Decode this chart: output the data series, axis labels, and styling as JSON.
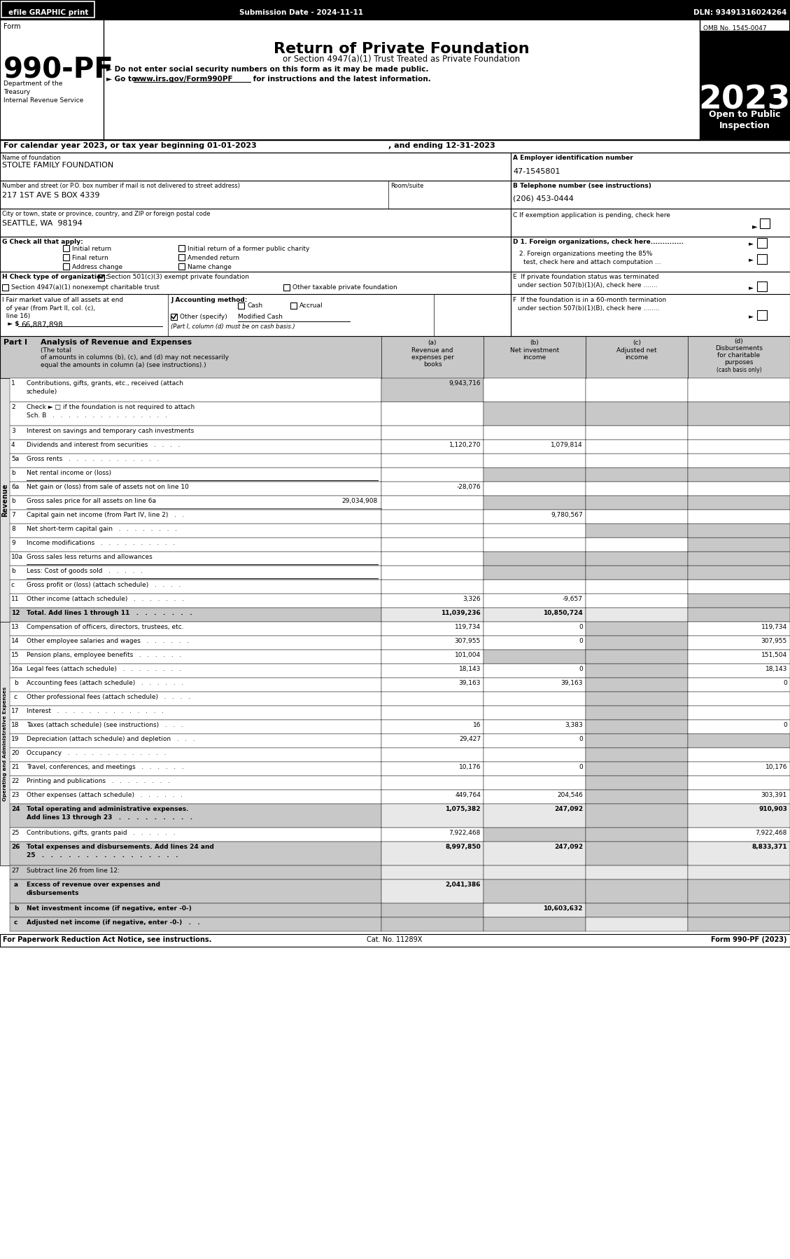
{
  "top_bar": {
    "text_left": "efile GRAPHIC print",
    "text_mid": "Submission Date - 2024-11-11",
    "text_right": "DLN: 93491316024264"
  },
  "form_number": "990-PF",
  "title": "Return of Private Foundation",
  "subtitle1": "or Section 4947(a)(1) Trust Treated as Private Foundation",
  "subtitle2": "► Do not enter social security numbers on this form as it may be made public.",
  "subtitle3_pre": "► Go to ",
  "subtitle3_url": "www.irs.gov/Form990PF",
  "subtitle3_post": " for instructions and the latest information.",
  "year": "2023",
  "omb": "OMB No. 1545-0047",
  "dept1": "Department of the",
  "dept2": "Treasury",
  "dept3": "Internal Revenue Service",
  "ein_label": "A Employer identification number",
  "ein_value": "47-1545801",
  "address_label": "Number and street (or P.O. box number if mail is not delivered to street address)",
  "room_label": "Room/suite",
  "address_value": "217 1ST AVE S BOX 4339",
  "phone_label": "B Telephone number (see instructions)",
  "phone_value": "(206) 453-0444",
  "city_value": "SEATTLE, WA  98194",
  "i_value": "66,887,898",
  "j_other_value": "Modified Cash",
  "rows": [
    {
      "num": "1",
      "label": "Contributions, gifts, grants, etc., received (attach\nschedule)",
      "a": "9,943,716",
      "b": "",
      "c": "",
      "d": "",
      "shade_cols": [
        true,
        false,
        false,
        false
      ]
    },
    {
      "num": "2",
      "label": "Check ► □ if the foundation is not required to attach\nSch. B   .   .   .   .   .   .   .   .   .   .   .   .   .   .   .",
      "a": "",
      "b": "",
      "c": "",
      "d": "",
      "shade_cols": [
        false,
        true,
        true,
        true
      ]
    },
    {
      "num": "3",
      "label": "Interest on savings and temporary cash investments",
      "a": "",
      "b": "",
      "c": "",
      "d": "",
      "shade_cols": [
        false,
        false,
        false,
        false
      ]
    },
    {
      "num": "4",
      "label": "Dividends and interest from securities   .   .   .   .",
      "a": "1,120,270",
      "b": "1,079,814",
      "c": "",
      "d": "",
      "shade_cols": [
        false,
        false,
        false,
        false
      ]
    },
    {
      "num": "5a",
      "label": "Gross rents   .   .   .   .   .   .   .   .   .   .   .   .",
      "a": "",
      "b": "",
      "c": "",
      "d": "",
      "shade_cols": [
        false,
        false,
        false,
        false
      ]
    },
    {
      "num": "b",
      "label": "Net rental income or (loss)",
      "a": "",
      "b": "",
      "c": "",
      "d": "",
      "shade_cols": [
        false,
        true,
        true,
        true
      ]
    },
    {
      "num": "6a",
      "label": "Net gain or (loss) from sale of assets not on line 10",
      "a": "-28,076",
      "b": "",
      "c": "",
      "d": "",
      "shade_cols": [
        false,
        false,
        false,
        false
      ]
    },
    {
      "num": "b",
      "label": "Gross sales price for all assets on line 6a",
      "a": "29,034,908",
      "b": "",
      "c": "",
      "d": "",
      "shade_cols": [
        false,
        true,
        true,
        true
      ],
      "value_in_label": true
    },
    {
      "num": "7",
      "label": "Capital gain net income (from Part IV, line 2)   .   .",
      "a": "",
      "b": "9,780,567",
      "c": "",
      "d": "",
      "shade_cols": [
        false,
        false,
        false,
        false
      ]
    },
    {
      "num": "8",
      "label": "Net short-term capital gain   .   .   .   .   .   .   .   .",
      "a": "",
      "b": "",
      "c": "",
      "d": "",
      "shade_cols": [
        false,
        false,
        true,
        true
      ]
    },
    {
      "num": "9",
      "label": "Income modifications   .   .   .   .   .   .   .   .   .   .",
      "a": "",
      "b": "",
      "c": "",
      "d": "",
      "shade_cols": [
        false,
        false,
        false,
        true
      ]
    },
    {
      "num": "10a",
      "label": "Gross sales less returns and allowances",
      "a": "",
      "b": "",
      "c": "",
      "d": "",
      "shade_cols": [
        false,
        true,
        true,
        true
      ],
      "underline_a": true
    },
    {
      "num": "b",
      "label": "Less: Cost of goods sold   .   .   .   .   .",
      "a": "",
      "b": "",
      "c": "",
      "d": "",
      "shade_cols": [
        false,
        true,
        true,
        true
      ],
      "underline_a": true
    },
    {
      "num": "c",
      "label": "Gross profit or (loss) (attach schedule)   .   .   .   .",
      "a": "",
      "b": "",
      "c": "",
      "d": "",
      "shade_cols": [
        false,
        false,
        false,
        false
      ]
    },
    {
      "num": "11",
      "label": "Other income (attach schedule)   .   .   .   .   .   .   .",
      "a": "3,326",
      "b": "-9,657",
      "c": "",
      "d": "",
      "shade_cols": [
        false,
        false,
        false,
        true
      ]
    },
    {
      "num": "12",
      "label": "Total. Add lines 1 through 11   .   .   .   .   .   .   .",
      "a": "11,039,236",
      "b": "10,850,724",
      "c": "",
      "d": "",
      "bold": true,
      "shade_cols": [
        false,
        false,
        false,
        true
      ]
    },
    {
      "num": "13",
      "label": "Compensation of officers, directors, trustees, etc.",
      "a": "119,734",
      "b": "0",
      "c": "",
      "d": "119,734",
      "shade_cols": [
        false,
        false,
        true,
        false
      ]
    },
    {
      "num": "14",
      "label": "Other employee salaries and wages   .   .   .   .   .   .",
      "a": "307,955",
      "b": "0",
      "c": "",
      "d": "307,955",
      "shade_cols": [
        false,
        false,
        true,
        false
      ]
    },
    {
      "num": "15",
      "label": "Pension plans, employee benefits   .   .   .   .   .   .",
      "a": "101,004",
      "b": "",
      "c": "",
      "d": "151,504",
      "shade_cols": [
        false,
        true,
        true,
        false
      ]
    },
    {
      "num": "16a",
      "label": "Legal fees (attach schedule)   .   .   .   .   .   .   .   .",
      "a": "18,143",
      "b": "0",
      "c": "",
      "d": "18,143",
      "shade_cols": [
        false,
        false,
        true,
        false
      ]
    },
    {
      "num": "b",
      "label": "Accounting fees (attach schedule)   .   .   .   .   .   .",
      "a": "39,163",
      "b": "39,163",
      "c": "",
      "d": "0",
      "shade_cols": [
        false,
        false,
        true,
        false
      ]
    },
    {
      "num": "c",
      "label": "Other professional fees (attach schedule)   .   .   .   .",
      "a": "",
      "b": "",
      "c": "",
      "d": "",
      "shade_cols": [
        false,
        false,
        true,
        false
      ]
    },
    {
      "num": "17",
      "label": "Interest   .   .   .   .   .   .   .   .   .   .   .   .   .   .",
      "a": "",
      "b": "",
      "c": "",
      "d": "",
      "shade_cols": [
        false,
        false,
        true,
        false
      ]
    },
    {
      "num": "18",
      "label": "Taxes (attach schedule) (see instructions)   .   .   .",
      "a": "16",
      "b": "3,383",
      "c": "",
      "d": "0",
      "shade_cols": [
        false,
        false,
        true,
        false
      ]
    },
    {
      "num": "19",
      "label": "Depreciation (attach schedule) and depletion   .   .   .",
      "a": "29,427",
      "b": "0",
      "c": "",
      "d": "",
      "shade_cols": [
        false,
        false,
        true,
        true
      ]
    },
    {
      "num": "20",
      "label": "Occupancy   .   .   .   .   .   .   .   .   .   .   .   .   .",
      "a": "",
      "b": "",
      "c": "",
      "d": "",
      "shade_cols": [
        false,
        false,
        true,
        false
      ]
    },
    {
      "num": "21",
      "label": "Travel, conferences, and meetings   .   .   .   .   .   .",
      "a": "10,176",
      "b": "0",
      "c": "",
      "d": "10,176",
      "shade_cols": [
        false,
        false,
        true,
        false
      ]
    },
    {
      "num": "22",
      "label": "Printing and publications   .   .   .   .   .   .   .   .",
      "a": "",
      "b": "",
      "c": "",
      "d": "",
      "shade_cols": [
        false,
        false,
        true,
        false
      ]
    },
    {
      "num": "23",
      "label": "Other expenses (attach schedule)   .   .   .   .   .   .",
      "a": "449,764",
      "b": "204,546",
      "c": "",
      "d": "303,391",
      "shade_cols": [
        false,
        false,
        true,
        false
      ]
    },
    {
      "num": "24",
      "label": "Total operating and administrative expenses.\nAdd lines 13 through 23   .   .   .   .   .   .   .   .   .",
      "a": "1,075,382",
      "b": "247,092",
      "c": "",
      "d": "910,903",
      "bold": true,
      "shade_cols": [
        false,
        false,
        true,
        false
      ]
    },
    {
      "num": "25",
      "label": "Contributions, gifts, grants paid   .   .   .   .   .   .",
      "a": "7,922,468",
      "b": "",
      "c": "",
      "d": "7,922,468",
      "shade_cols": [
        false,
        true,
        true,
        false
      ]
    },
    {
      "num": "26",
      "label": "Total expenses and disbursements. Add lines 24 and\n25   .   .   .   .   .   .   .   .   .   .   .   .   .   .   .   .",
      "a": "8,997,850",
      "b": "247,092",
      "c": "",
      "d": "8,833,371",
      "bold": true,
      "shade_cols": [
        false,
        false,
        true,
        false
      ]
    },
    {
      "num": "27",
      "label": "Subtract line 26 from line 12:",
      "a": "",
      "b": "",
      "c": "",
      "d": "",
      "header": true,
      "shade_cols": [
        false,
        false,
        false,
        false
      ]
    },
    {
      "num": "a",
      "label": "Excess of revenue over expenses and\ndisbursements",
      "a": "2,041,386",
      "b": "",
      "c": "",
      "d": "",
      "bold": true,
      "shade_cols": [
        false,
        true,
        true,
        true
      ]
    },
    {
      "num": "b",
      "label": "Net investment income (if negative, enter -0-)",
      "a": "",
      "b": "10,603,632",
      "c": "",
      "d": "",
      "bold": true,
      "shade_cols": [
        true,
        false,
        true,
        true
      ]
    },
    {
      "num": "c",
      "label": "Adjusted net income (if negative, enter -0-)   .   .",
      "a": "",
      "b": "",
      "c": "",
      "d": "",
      "bold": true,
      "shade_cols": [
        true,
        true,
        false,
        true
      ]
    }
  ],
  "footer_left": "For Paperwork Reduction Act Notice, see instructions.",
  "footer_mid": "Cat. No. 11289X",
  "footer_right": "Form 990-PF (2023)"
}
